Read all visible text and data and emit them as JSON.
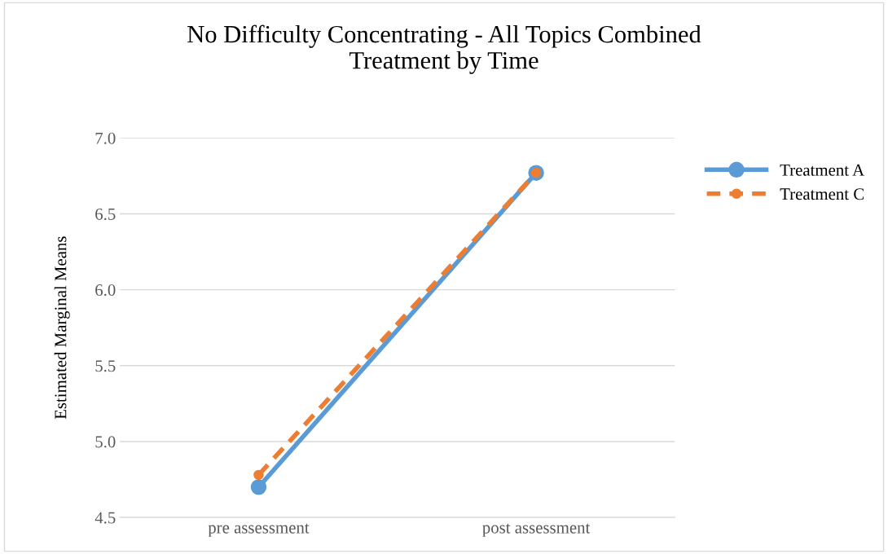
{
  "chart_data": {
    "type": "line",
    "title": "No Difficulty Concentrating - All Topics Combined\nTreatment by Time",
    "ylabel": "Estimated Marginal Means",
    "categories": [
      "pre assessment",
      "post assessment"
    ],
    "series": [
      {
        "name": "Treatment A",
        "color": "#5b9bd5",
        "values": [
          4.7,
          6.77
        ],
        "line_style": "solid"
      },
      {
        "name": "Treatment C",
        "color": "#ed7d31",
        "values": [
          4.78,
          6.77
        ],
        "line_style": "dashed"
      }
    ],
    "ylim": [
      4.5,
      7.0
    ],
    "yticks": [
      {
        "value": 4.5,
        "label": "4.5"
      },
      {
        "value": 5.0,
        "label": "5.0"
      },
      {
        "value": 5.5,
        "label": "5.5"
      },
      {
        "value": 6.0,
        "label": "6.0"
      },
      {
        "value": 6.5,
        "label": "6.5"
      },
      {
        "value": 7.0,
        "label": "7.0"
      }
    ],
    "grid": "y",
    "legend": "right",
    "marker": "circle"
  }
}
